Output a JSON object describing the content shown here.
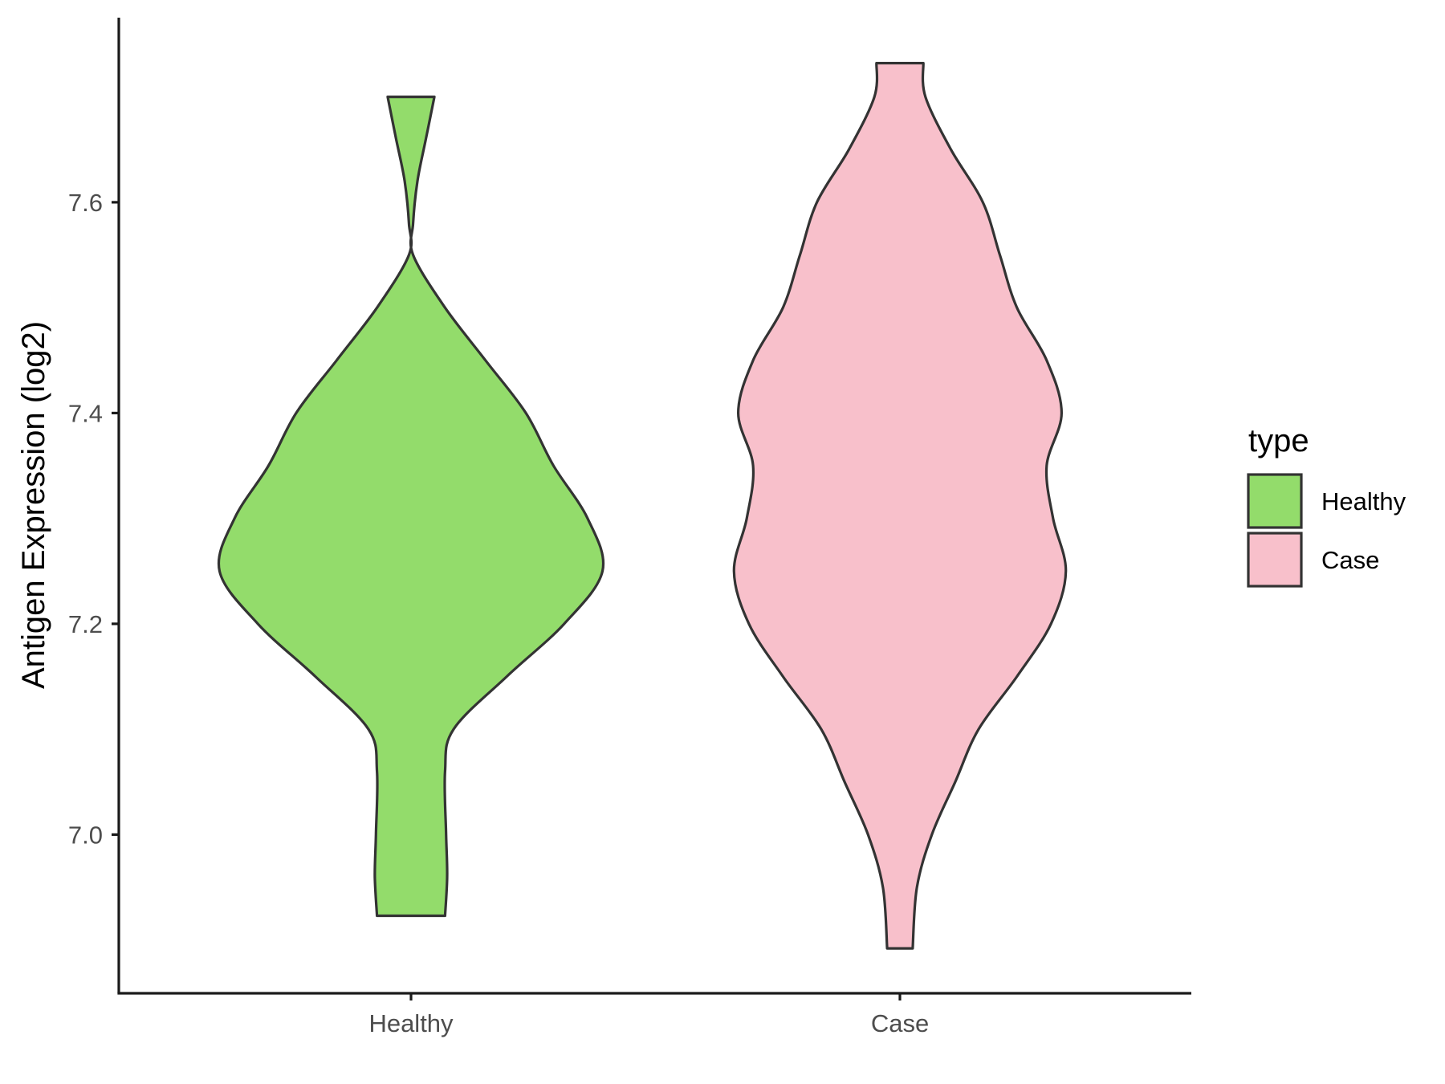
{
  "chart_data": {
    "type": "violin",
    "xlabel": "",
    "ylabel": "Antigen Expression (log2)",
    "ylim": [
      6.85,
      7.78
    ],
    "yticks": [
      7.0,
      7.2,
      7.4,
      7.6
    ],
    "ytick_labels": [
      "7.0",
      "7.2",
      "7.4",
      "7.6"
    ],
    "categories": [
      "Healthy",
      "Case"
    ],
    "grid": false,
    "legend": {
      "title": "type",
      "position": "right",
      "entries": [
        {
          "label": "Healthy",
          "color": "#93dc6b"
        },
        {
          "label": "Case",
          "color": "#f8c0cb"
        }
      ]
    },
    "series": [
      {
        "name": "Healthy",
        "color": "#93dc6b",
        "y_min": 6.923,
        "y_max": 7.7,
        "density_profile": [
          {
            "y": 6.923,
            "half_width": 0.16
          },
          {
            "y": 6.96,
            "half_width": 0.17
          },
          {
            "y": 7.0,
            "half_width": 0.165
          },
          {
            "y": 7.06,
            "half_width": 0.16
          },
          {
            "y": 7.1,
            "half_width": 0.2
          },
          {
            "y": 7.15,
            "half_width": 0.45
          },
          {
            "y": 7.2,
            "half_width": 0.72
          },
          {
            "y": 7.25,
            "half_width": 0.9
          },
          {
            "y": 7.3,
            "half_width": 0.83
          },
          {
            "y": 7.35,
            "half_width": 0.67
          },
          {
            "y": 7.4,
            "half_width": 0.54
          },
          {
            "y": 7.45,
            "half_width": 0.35
          },
          {
            "y": 7.5,
            "half_width": 0.16
          },
          {
            "y": 7.55,
            "half_width": 0.01
          },
          {
            "y": 7.58,
            "half_width": 0.01
          },
          {
            "y": 7.62,
            "half_width": 0.03
          },
          {
            "y": 7.66,
            "half_width": 0.07
          },
          {
            "y": 7.7,
            "half_width": 0.11
          }
        ]
      },
      {
        "name": "Case",
        "color": "#f8c0cb",
        "y_min": 6.892,
        "y_max": 7.732,
        "density_profile": [
          {
            "y": 6.892,
            "half_width": 0.06
          },
          {
            "y": 6.95,
            "half_width": 0.08
          },
          {
            "y": 7.0,
            "half_width": 0.15
          },
          {
            "y": 7.05,
            "half_width": 0.26
          },
          {
            "y": 7.1,
            "half_width": 0.37
          },
          {
            "y": 7.15,
            "half_width": 0.55
          },
          {
            "y": 7.2,
            "half_width": 0.71
          },
          {
            "y": 7.25,
            "half_width": 0.78
          },
          {
            "y": 7.3,
            "half_width": 0.72
          },
          {
            "y": 7.35,
            "half_width": 0.69
          },
          {
            "y": 7.4,
            "half_width": 0.76
          },
          {
            "y": 7.45,
            "half_width": 0.69
          },
          {
            "y": 7.5,
            "half_width": 0.55
          },
          {
            "y": 7.55,
            "half_width": 0.47
          },
          {
            "y": 7.6,
            "half_width": 0.39
          },
          {
            "y": 7.65,
            "half_width": 0.24
          },
          {
            "y": 7.7,
            "half_width": 0.12
          },
          {
            "y": 7.732,
            "half_width": 0.11
          }
        ]
      }
    ]
  }
}
